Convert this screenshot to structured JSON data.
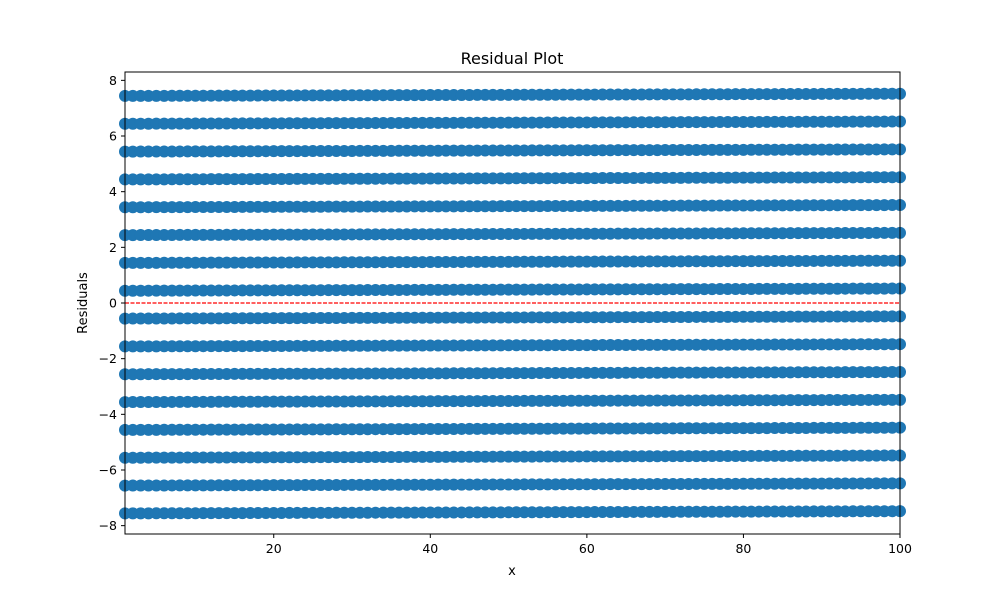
{
  "chart_data": {
    "type": "scatter",
    "title": "Residual Plot",
    "xlabel": "x",
    "ylabel": "Residuals",
    "xlim": [
      1,
      100
    ],
    "ylim": [
      -8.3,
      8.3
    ],
    "xticks": [
      20,
      40,
      60,
      80,
      100
    ],
    "yticks": [
      -8,
      -6,
      -4,
      -2,
      0,
      2,
      4,
      6,
      8
    ],
    "ytick_labels": [
      "−8",
      "−6",
      "−4",
      "−2",
      "0",
      "2",
      "4",
      "6",
      "8"
    ],
    "grid": false,
    "legend": "none",
    "point_color": "#1f77b4",
    "x_points": {
      "start": 1,
      "end": 100,
      "step": 1
    },
    "series": [
      {
        "y_start": 7.44,
        "y_end": 7.52
      },
      {
        "y_start": 6.44,
        "y_end": 6.52
      },
      {
        "y_start": 5.44,
        "y_end": 5.52
      },
      {
        "y_start": 4.44,
        "y_end": 4.52
      },
      {
        "y_start": 3.44,
        "y_end": 3.52
      },
      {
        "y_start": 2.44,
        "y_end": 2.52
      },
      {
        "y_start": 1.44,
        "y_end": 1.52
      },
      {
        "y_start": 0.44,
        "y_end": 0.52
      },
      {
        "y_start": -0.56,
        "y_end": -0.48
      },
      {
        "y_start": -1.56,
        "y_end": -1.48
      },
      {
        "y_start": -2.56,
        "y_end": -2.48
      },
      {
        "y_start": -3.56,
        "y_end": -3.48
      },
      {
        "y_start": -4.56,
        "y_end": -4.48
      },
      {
        "y_start": -5.56,
        "y_end": -5.48
      },
      {
        "y_start": -6.56,
        "y_end": -6.48
      },
      {
        "y_start": -7.56,
        "y_end": -7.48
      }
    ],
    "reference_line": {
      "y": 0,
      "color": "#ff0000",
      "style": "dashed"
    }
  }
}
